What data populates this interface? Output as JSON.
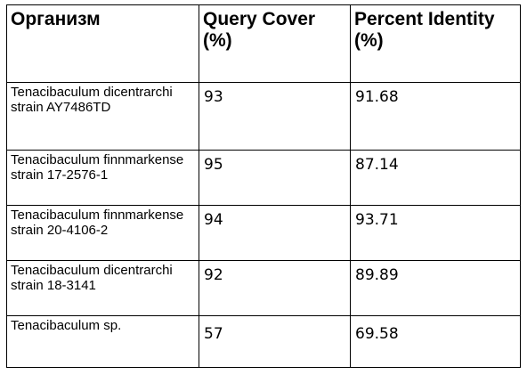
{
  "table": {
    "headers": [
      "Организм",
      "Query Cover (%)",
      "Percent Identity (%)"
    ],
    "rows": [
      {
        "organism": "Tenacibaculum dicentrarchi strain AY7486TD",
        "query_cover": "93",
        "percent_identity": "91.68"
      },
      {
        "organism": "Tenacibaculum finnmarkense strain 17-2576-1",
        "query_cover": "95",
        "percent_identity": "87.14"
      },
      {
        "organism": "Tenacibaculum finnmarkense strain 20-4106-2",
        "query_cover": "94",
        "percent_identity": "93.71"
      },
      {
        "organism": "Tenacibaculum dicentrarchi strain 18-3141",
        "query_cover": "92",
        "percent_identity": "89.89"
      },
      {
        "organism": "Tenacibaculum sp.",
        "query_cover": "57",
        "percent_identity": "69.58"
      }
    ]
  }
}
